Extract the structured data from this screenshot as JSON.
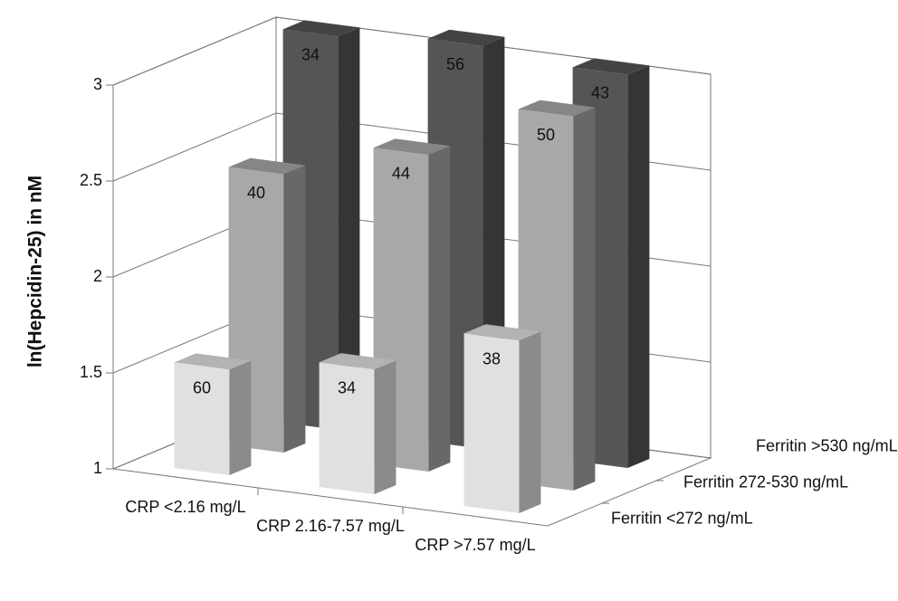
{
  "chart_data": {
    "type": "bar3d",
    "ylabel": "ln(Hepcidin-25) in nM",
    "categories": [
      "CRP <2.16 mg/L",
      "CRP 2.16-7.57 mg/L",
      "CRP >7.57 mg/L"
    ],
    "series": [
      {
        "name": "Ferritin <272 ng/mL",
        "color": "#e0e0e0",
        "values": [
          1.55,
          1.65,
          1.9
        ],
        "counts": [
          60,
          34,
          38
        ]
      },
      {
        "name": "Ferritin 272-530 ng/mL",
        "color": "#a8a8a8",
        "values": [
          2.45,
          2.65,
          2.95
        ],
        "counts": [
          40,
          44,
          50
        ]
      },
      {
        "name": "Ferritin >530 ng/mL",
        "color": "#555555",
        "values": [
          3.05,
          3.1,
          3.05
        ],
        "counts": [
          34,
          56,
          43
        ]
      }
    ],
    "ylim": [
      1,
      3
    ],
    "yticks": [
      1,
      1.5,
      2,
      2.5,
      3
    ],
    "grid": true
  }
}
